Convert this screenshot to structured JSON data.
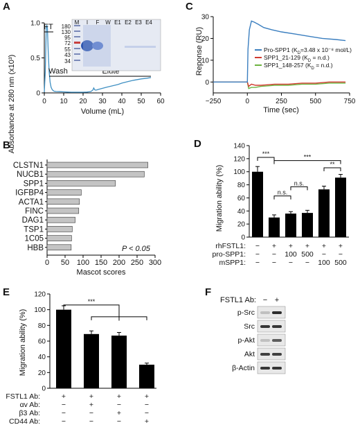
{
  "panels": {
    "A": {
      "label": "A",
      "chart_data": {
        "type": "line",
        "xlabel": "Volume (mL)",
        "ylabel": "Absorbance at 280 nm (x10³)",
        "xlim": [
          0,
          60
        ],
        "ylim": [
          0,
          1.0
        ],
        "xticks": [
          "0",
          "10",
          "20",
          "30",
          "40",
          "50",
          "60"
        ],
        "yticks": [
          "0",
          "0.5",
          "1.0"
        ],
        "series": [
          {
            "x": [
              0,
              0.5,
              1,
              1.3,
              1.6,
              2,
              2.5,
              3,
              3.5,
              4,
              4.5,
              5,
              6,
              8,
              10,
              12,
              14,
              16,
              18,
              20,
              22,
              24,
              25,
              25.5,
              26,
              26.5,
              27,
              28,
              30,
              32,
              35,
              38,
              40,
              43,
              46,
              50,
              53,
              55
            ],
            "y": [
              0.01,
              0.3,
              0.93,
              0.97,
              0.92,
              0.6,
              0.3,
              0.15,
              0.08,
              0.05,
              0.035,
              0.025,
              0.02,
              0.018,
              0.015,
              0.012,
              0.01,
              0.01,
              0.01,
              0.01,
              0.012,
              0.02,
              0.04,
              0.07,
              0.045,
              0.04,
              0.042,
              0.05,
              0.065,
              0.08,
              0.1,
              0.12,
              0.14,
              0.16,
              0.18,
              0.2,
              0.21,
              0.22
            ]
          }
        ],
        "annotations": [
          "FT",
          "Wash",
          "Elute"
        ]
      },
      "gel_lanes": [
        "M",
        "I",
        "F",
        "W",
        "E1",
        "E2",
        "E3",
        "E4"
      ],
      "gel_markers": [
        "180",
        "130",
        "95",
        "72",
        "55",
        "43",
        "34"
      ]
    },
    "B": {
      "label": "B",
      "chart_data": {
        "type": "bar",
        "orientation": "horizontal",
        "categories": [
          "CLSTN1",
          "NUCB1",
          "SPP1",
          "IGFBP4",
          "ACTA1",
          "FINC",
          "DAG1",
          "TSP1",
          "1C05",
          "HBB"
        ],
        "values": [
          280,
          270,
          190,
          95,
          90,
          88,
          78,
          70,
          68,
          67
        ],
        "xlabel": "Mascot scores",
        "xlim": [
          0,
          300
        ],
        "xticks": [
          "0",
          "50",
          "100",
          "150",
          "200",
          "250",
          "300"
        ],
        "annotation": "P < 0.05"
      }
    },
    "C": {
      "label": "C",
      "chart_data": {
        "type": "line",
        "xlabel": "Time (sec)",
        "ylabel": "Reponse (RU)",
        "xlim": [
          -250,
          750
        ],
        "ylim": [
          -5,
          30
        ],
        "xticks": [
          "−250",
          "0",
          "250",
          "500",
          "750"
        ],
        "yticks": [
          "0",
          "10",
          "20",
          "30"
        ],
        "series": [
          {
            "name": "Pro-SPP1 (K",
            "sub": "D",
            "rest": "=3.48 x 10⁻⁸ mol/L)",
            "color": "#3a7ebf",
            "x": [
              -250,
              -100,
              0,
              5,
              15,
              30,
              50,
              80,
              120,
              180,
              250,
              350,
              450,
              550,
              650,
              720
            ],
            "y": [
              0,
              0,
              0,
              15,
              24,
              28,
              27.5,
              26.5,
              25,
              24,
              23,
              22,
              21,
              20,
              19.5,
              19
            ]
          },
          {
            "name": "SPP1_21-129 (K",
            "sub": "D",
            "rest": " = n.d.)",
            "color": "#d03a2f",
            "x": [
              -250,
              -100,
              0,
              10,
              30,
              60,
              100,
              200,
              300,
              400,
              500,
              600,
              720
            ],
            "y": [
              0,
              0,
              0,
              -2,
              -1,
              -1.5,
              -1.5,
              -1,
              -1,
              -0.5,
              -0.5,
              0,
              0
            ]
          },
          {
            "name": "SPP1_148-257 (K",
            "sub": "D",
            "rest": " = n.d.)",
            "color": "#6cb33f",
            "x": [
              -250,
              -100,
              0,
              10,
              30,
              60,
              100,
              200,
              300,
              400,
              500,
              600,
              720
            ],
            "y": [
              0,
              0,
              0,
              -3,
              -2.5,
              -2.5,
              -2,
              -1.5,
              -1.5,
              -1,
              -1,
              -0.5,
              -0.5
            ]
          }
        ]
      }
    },
    "D": {
      "label": "D",
      "chart_data": {
        "type": "bar",
        "ylabel": "Migration ability (%)",
        "ylim": [
          0,
          140
        ],
        "yticks": [
          "0",
          "20",
          "40",
          "60",
          "80",
          "100",
          "120",
          "140"
        ],
        "values": [
          100,
          30,
          36,
          37,
          73,
          91
        ],
        "errors": [
          8,
          4,
          3,
          4,
          5,
          5
        ],
        "rows": [
          {
            "label": "rhFSTL1:",
            "cells": [
              "−",
              "+",
              "+",
              "+",
              "+",
              "+"
            ]
          },
          {
            "label": "pro-SPP1:",
            "cells": [
              "−",
              "−",
              "100",
              "500",
              "−",
              "−"
            ]
          },
          {
            "label": "mSPP1:",
            "cells": [
              "−",
              "−",
              "−",
              "−",
              "100",
              "500"
            ]
          }
        ],
        "significance": [
          "***",
          "***",
          "n.s.",
          "n.s.",
          "**"
        ]
      }
    },
    "E": {
      "label": "E",
      "chart_data": {
        "type": "bar",
        "ylabel": "Migration ability (%)",
        "ylim": [
          0,
          120
        ],
        "yticks": [
          "0",
          "20",
          "40",
          "60",
          "80",
          "100",
          "120"
        ],
        "values": [
          100,
          69,
          67,
          30
        ],
        "errors": [
          5,
          4,
          4,
          2
        ],
        "rows": [
          {
            "label": "FSTL1 Ab:",
            "cells": [
              "+",
              "+",
              "+",
              "+"
            ]
          },
          {
            "label": "αv Ab:",
            "cells": [
              "−",
              "+",
              "−",
              "−"
            ]
          },
          {
            "label": "β3 Ab:",
            "cells": [
              "−",
              "−",
              "+",
              "−"
            ]
          },
          {
            "label": "CD44 Ab:",
            "cells": [
              "−",
              "−",
              "−",
              "+"
            ]
          }
        ],
        "significance": [
          "***"
        ]
      }
    },
    "F": {
      "label": "F",
      "header_label": "FSTL1 Ab:",
      "header_cells": [
        "−",
        "+"
      ],
      "blots": [
        "p-Src",
        "Src",
        "p-Akt",
        "Akt",
        "β-Actin"
      ]
    }
  }
}
